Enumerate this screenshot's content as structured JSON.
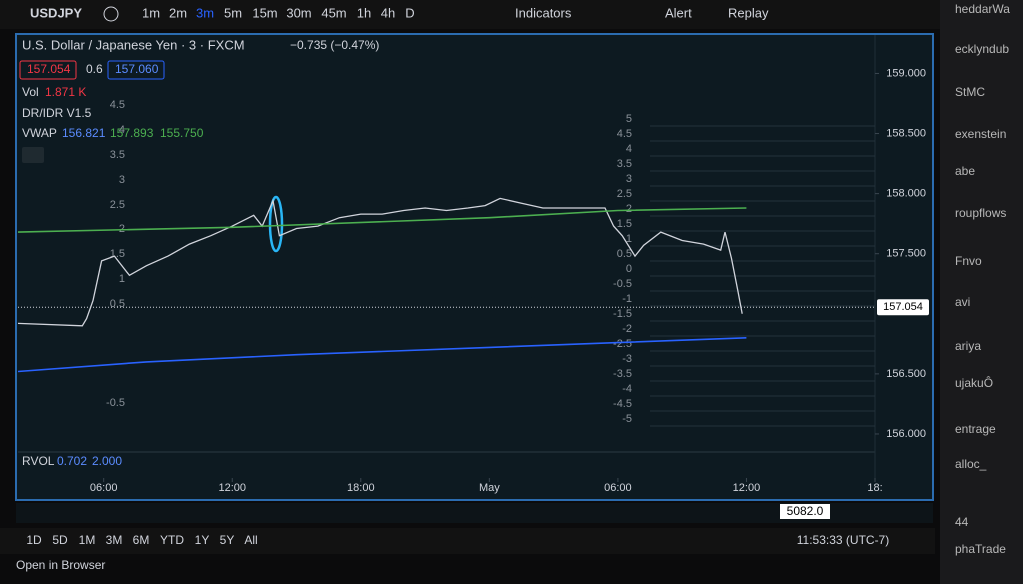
{
  "toolbar": {
    "symbol": "USDJPY",
    "intervals": [
      "1m",
      "2m",
      "3m",
      "5m",
      "15m",
      "30m",
      "45m",
      "1h",
      "4h",
      "D"
    ],
    "active_interval": 2,
    "indicators": "Indicators",
    "alert": "Alert",
    "replay": "Replay"
  },
  "legend": {
    "title": "U.S. Dollar / Japanese Yen · 3 · FXCM",
    "change": "−0.735 (−0.47%)",
    "bid": "157.054",
    "spread": "0.6",
    "ask": "157.060",
    "vol_label": "Vol",
    "vol_value": "1.871 K",
    "dr_idr": "DR/IDR V1.5",
    "vwap_label": "VWAP",
    "vwap_values": [
      "156.821",
      "157.893",
      "155.750"
    ],
    "rvol_label": "RVOL",
    "rvol_values": [
      "0.702",
      "2.000"
    ]
  },
  "dr_levels_left": [
    "4.5",
    "4",
    "3.5",
    "3",
    "2.5",
    "2",
    "1.5",
    "1",
    "0.5",
    "-0.5"
  ],
  "dr_levels_right": [
    "5",
    "4.5",
    "4",
    "3.5",
    "3",
    "2.5",
    "2",
    "1.5",
    "1",
    "0.5",
    "0",
    "-0.5",
    "-1",
    "-1.5",
    "-2",
    "-2.5",
    "-3",
    "-3.5",
    "-4",
    "-4.5",
    "-5"
  ],
  "chart_data": {
    "type": "line",
    "xlim": [
      2,
      42
    ],
    "ylim": [
      155.85,
      159.32
    ],
    "xticks": [
      {
        "value": 6,
        "label": "06:00"
      },
      {
        "value": 12,
        "label": "12:00"
      },
      {
        "value": 18,
        "label": "18:00"
      },
      {
        "value": 24,
        "label": "May"
      },
      {
        "value": 30,
        "label": "06:00"
      },
      {
        "value": 36,
        "label": "12:00"
      },
      {
        "value": 42,
        "label": "18:"
      }
    ],
    "yticks": [
      {
        "value": 159,
        "label": "159.000"
      },
      {
        "value": 158.5,
        "label": "158.500"
      },
      {
        "value": 158,
        "label": "158.000"
      },
      {
        "value": 157.5,
        "label": "157.500"
      },
      {
        "value": 156.5,
        "label": "156.500"
      },
      {
        "value": 156,
        "label": "156.000"
      }
    ],
    "last_price": 157.054,
    "series": [
      {
        "color": "#d1d4dc",
        "x": [
          2,
          5,
          5.2,
          5.5,
          5.9,
          6.5,
          7.2,
          8,
          9,
          10,
          11,
          12,
          13,
          13.4,
          13.9,
          14.2,
          15,
          16,
          17,
          18,
          19,
          20,
          21,
          22,
          23,
          23.8,
          24.5,
          25.5,
          26.5,
          27.5,
          28.5,
          29.4,
          29.8,
          30.2,
          30.8,
          31.2,
          32,
          33,
          34,
          34.8,
          35,
          35.3,
          35.6,
          35.8
        ],
        "values": [
          156.92,
          156.9,
          156.96,
          157.11,
          157.44,
          157.48,
          157.32,
          157.4,
          157.48,
          157.58,
          157.65,
          157.73,
          157.82,
          157.73,
          157.94,
          157.65,
          157.71,
          157.73,
          157.8,
          157.83,
          157.83,
          157.86,
          157.88,
          157.86,
          157.88,
          157.9,
          157.96,
          157.92,
          157.88,
          157.88,
          157.88,
          157.88,
          157.73,
          157.65,
          157.48,
          157.57,
          157.68,
          157.61,
          157.58,
          157.53,
          157.68,
          157.46,
          157.19,
          157.0
        ]
      },
      {
        "color": "#4caf50",
        "x": [
          2,
          12,
          24,
          30,
          36
        ],
        "values": [
          157.68,
          157.72,
          157.8,
          157.86,
          157.88
        ]
      },
      {
        "color": "#2962ff",
        "x": [
          2,
          8,
          15,
          24,
          30,
          36
        ],
        "values": [
          156.52,
          156.6,
          156.66,
          156.72,
          156.76,
          156.8
        ]
      }
    ]
  },
  "second_pane": {
    "price": "5082.0"
  },
  "bottom_bar": {
    "ranges": [
      "1D",
      "5D",
      "1M",
      "3M",
      "6M",
      "YTD",
      "1Y",
      "5Y",
      "All"
    ],
    "clock": "11:53:33 (UTC-7)"
  },
  "browser": {
    "open": "Open in Browser"
  },
  "side_panel": [
    "heddarWa",
    "ecklyndub",
    "StMC",
    "exenstein",
    "abe",
    "roupflows",
    "Fnvo",
    "avi",
    "ariya",
    "ujakuÔ",
    "entrage",
    "alloc_",
    "44",
    "phaTrade"
  ]
}
